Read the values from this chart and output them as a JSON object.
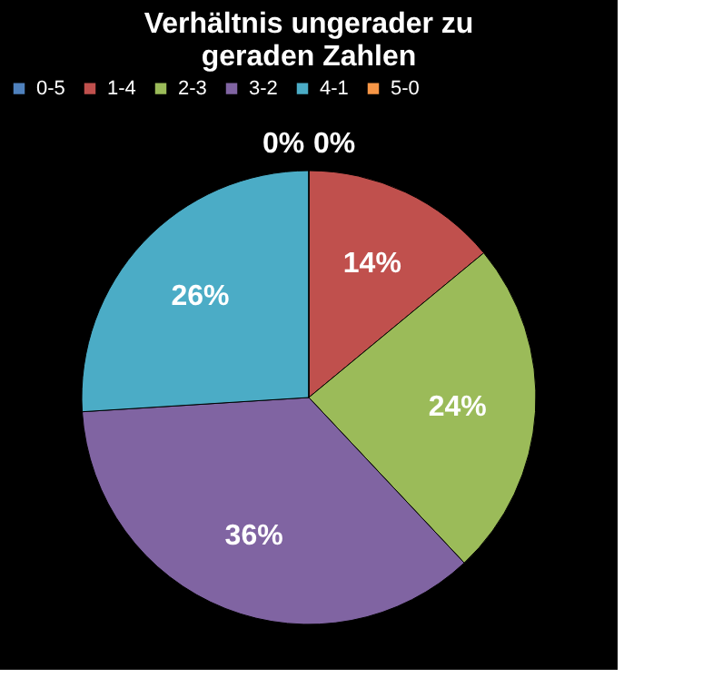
{
  "chart_data": {
    "type": "pie",
    "title": "Verhältnis ungerader zu geraden Zahlen",
    "categories": [
      "0-5",
      "1-4",
      "2-3",
      "3-2",
      "4-1",
      "5-0"
    ],
    "values": [
      0,
      14,
      24,
      36,
      26,
      0
    ],
    "value_labels": [
      "0%",
      "14%",
      "24%",
      "36%",
      "26%",
      "0%"
    ],
    "colors": [
      "#4f81bd",
      "#c0504d",
      "#9bbb59",
      "#8064a2",
      "#4bacc6",
      "#f79646"
    ],
    "legend": "top"
  }
}
